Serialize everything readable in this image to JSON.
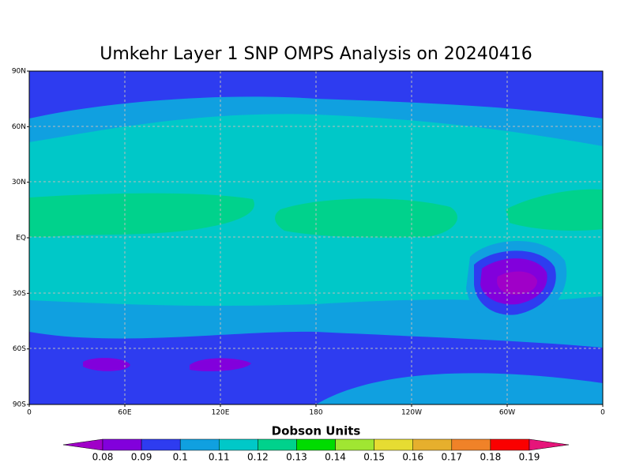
{
  "map": {
    "title": "Umkehr Layer 1 SNP OMPS Analysis on 20240416",
    "lat_labels": [
      "90N",
      "60N",
      "30N",
      "EQ",
      "30S",
      "60S",
      "90S"
    ],
    "lon_labels": [
      "0",
      "60E",
      "120E",
      "180",
      "120W",
      "60W",
      "0"
    ]
  },
  "colorbar": {
    "label": "Dobson Units",
    "ticks": [
      0.08,
      0.09,
      0.1,
      0.11,
      0.12,
      0.13,
      0.14,
      0.15,
      0.16,
      0.17,
      0.18,
      0.19
    ],
    "colors": [
      "#a000c8",
      "#8200dc",
      "#2e3cf0",
      "#10a0e0",
      "#00c8c8",
      "#00d28c",
      "#00dc00",
      "#a0e632",
      "#e6dc32",
      "#e6af2d",
      "#f08228",
      "#fa0000",
      "#e6147a"
    ]
  }
}
